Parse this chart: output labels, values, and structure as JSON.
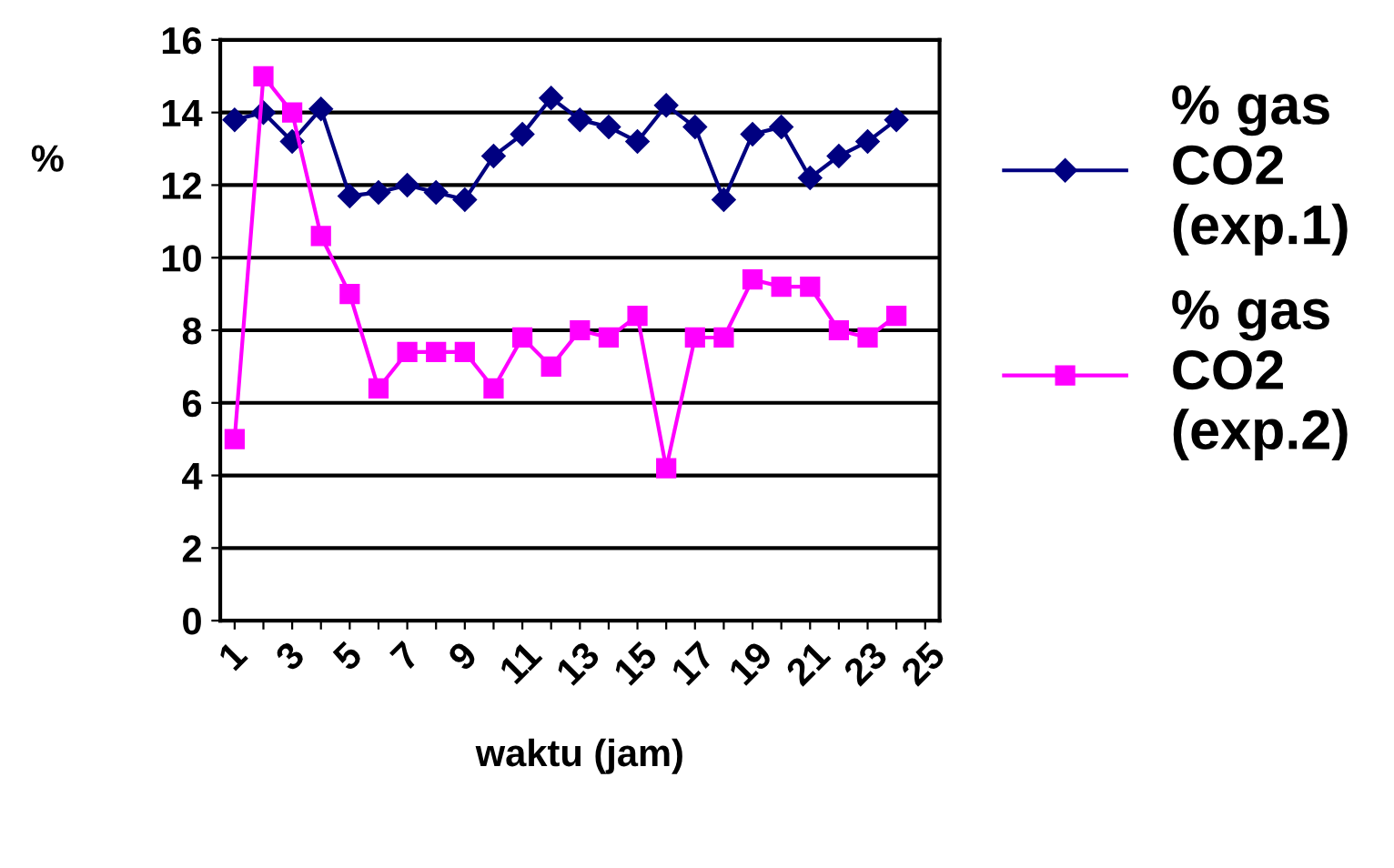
{
  "chart_data": {
    "type": "line",
    "xlabel": "waktu (jam)",
    "ylabel": "%",
    "categories": [
      "1",
      null,
      "3",
      null,
      "5",
      null,
      "7",
      null,
      "9",
      null,
      "11",
      null,
      "13",
      null,
      "15",
      null,
      "17",
      null,
      "19",
      null,
      "21",
      null,
      "23",
      null,
      "25"
    ],
    "series": [
      {
        "name": "% gas CO2 (exp.1)",
        "color": "#000080",
        "marker": "diamond",
        "values": [
          13.8,
          14.0,
          13.2,
          14.1,
          11.7,
          11.8,
          12.0,
          11.8,
          11.6,
          12.8,
          13.4,
          14.4,
          13.8,
          13.6,
          13.2,
          14.2,
          13.6,
          11.6,
          13.4,
          13.6,
          12.2,
          12.8,
          13.2,
          13.8,
          null
        ]
      },
      {
        "name": "% gas CO2 (exp.2)",
        "color": "#ff00ff",
        "marker": "square",
        "values": [
          5.0,
          15.0,
          14.0,
          10.6,
          9.0,
          6.4,
          7.4,
          7.4,
          7.4,
          6.4,
          7.8,
          7.0,
          8.0,
          7.8,
          8.4,
          4.2,
          7.8,
          7.8,
          9.4,
          9.2,
          9.2,
          8.0,
          7.8,
          8.4,
          null
        ]
      }
    ],
    "ylim": [
      0,
      16
    ],
    "yticks": [
      0,
      2,
      4,
      6,
      8,
      10,
      12,
      14,
      16
    ],
    "grid": "y",
    "legend": "right",
    "line_style": "solid"
  }
}
